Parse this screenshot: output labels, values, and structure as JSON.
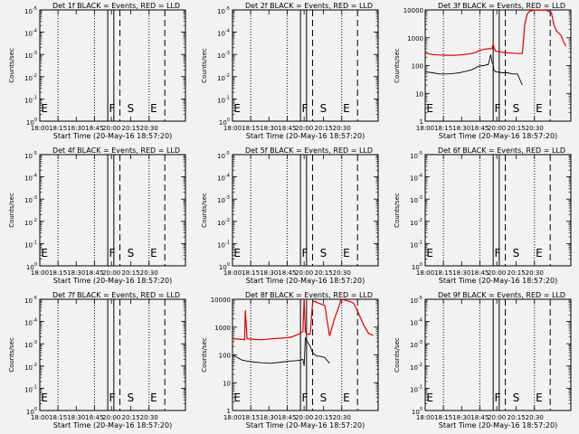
{
  "colors": {
    "background": "#f2f2f2",
    "events": "#000000",
    "lld": "#e00000"
  },
  "chart_data": [
    {
      "type": "line",
      "title": "Det 1f BLACK = Events, RED = LLD",
      "xlabel": "Start Time (20-May-16 18:57:20)",
      "ylabel": "Counts/sec",
      "x_ticks": [
        "18:00",
        "18:15",
        "18:30",
        "18:45",
        "20:00",
        "20:15",
        "20:30"
      ],
      "y_ticks": [
        "10^-5",
        "10^-4",
        "10^-3",
        "10^-2",
        "10^-1",
        "10^0"
      ],
      "y_scale": "log",
      "y_range": [
        "1e-5",
        "1e0"
      ],
      "markers": [
        "E",
        "F",
        "S",
        "E"
      ],
      "series": []
    },
    {
      "type": "line",
      "title": "Det 2f BLACK = Events, RED = LLD",
      "xlabel": "Start Time (20-May-16 18:57:20)",
      "ylabel": "Counts/sec",
      "x_ticks": [
        "18:00",
        "18:15",
        "18:30",
        "18:45",
        "20:00",
        "20:15",
        "20:30"
      ],
      "y_ticks": [
        "10^-5",
        "10^-4",
        "10^-3",
        "10^-2",
        "10^-1",
        "10^0"
      ],
      "y_scale": "log",
      "y_range": [
        "1e-5",
        "1e0"
      ],
      "markers": [
        "E",
        "F",
        "S",
        "E"
      ],
      "series": []
    },
    {
      "type": "line",
      "title": "Det 3f BLACK = Events, RED = LLD",
      "xlabel": "Start Time (20-May-16 18:57:20)",
      "ylabel": "Counts/sec",
      "x_ticks": [
        "18:00",
        "18:15",
        "18:30",
        "18:45",
        "20:00",
        "20:15",
        "20:30"
      ],
      "y_ticks": [
        "10000",
        "1000",
        "100",
        "10",
        "1"
      ],
      "y_scale": "log",
      "y_range": [
        "1",
        "10000"
      ],
      "markers": [
        "E",
        "F",
        "S",
        "E"
      ],
      "series": [
        {
          "color": "#e00000",
          "x": [
            0,
            3,
            6,
            9,
            12,
            14,
            16,
            19,
            21,
            22,
            24,
            26,
            27.5,
            28,
            28.3,
            29,
            32,
            34,
            36,
            38,
            40,
            40.3,
            41,
            42,
            43,
            44,
            45,
            46,
            47,
            48,
            49,
            50,
            52,
            53,
            54,
            56,
            57,
            58
          ],
          "y": [
            280,
            250,
            240,
            235,
            235,
            240,
            250,
            270,
            300,
            340,
            380,
            400,
            410,
            600,
            450,
            330,
            300,
            285,
            280,
            270,
            270,
            500,
            3000,
            7000,
            9000,
            9500,
            10000,
            9800,
            9800,
            9900,
            9800,
            9800,
            8000,
            3000,
            1800,
            1200,
            700,
            500
          ]
        },
        {
          "color": "#000000",
          "x": [
            0,
            3,
            6,
            9,
            12,
            14,
            16,
            19,
            21,
            22,
            24,
            26,
            27,
            27.5,
            28,
            28.3,
            29,
            32,
            34,
            36,
            38,
            40
          ],
          "y": [
            60,
            55,
            50,
            50,
            52,
            55,
            60,
            70,
            85,
            95,
            100,
            110,
            250,
            130,
            110,
            70,
            60,
            55,
            55,
            50,
            50,
            20
          ]
        }
      ]
    },
    {
      "type": "line",
      "title": "Det 4f BLACK = Events, RED = LLD",
      "xlabel": "Start Time (20-May-16 18:57:20)",
      "ylabel": "Counts/sec",
      "x_ticks": [
        "18:00",
        "18:15",
        "18:30",
        "18:45",
        "20:00",
        "20:15",
        "20:30"
      ],
      "y_ticks": [
        "10^-5",
        "10^-4",
        "10^-3",
        "10^-2",
        "10^-1",
        "10^0"
      ],
      "y_scale": "log",
      "y_range": [
        "1e-5",
        "1e0"
      ],
      "markers": [
        "E",
        "F",
        "S",
        "E"
      ],
      "series": []
    },
    {
      "type": "line",
      "title": "Det 5f BLACK = Events, RED = LLD",
      "xlabel": "Start Time (20-May-16 18:57:20)",
      "ylabel": "Counts/sec",
      "x_ticks": [
        "18:00",
        "18:15",
        "18:30",
        "18:45",
        "20:00",
        "20:15",
        "20:30"
      ],
      "y_ticks": [
        "10^-5",
        "10^-4",
        "10^-3",
        "10^-2",
        "10^-1",
        "10^0"
      ],
      "y_scale": "log",
      "y_range": [
        "1e-5",
        "1e0"
      ],
      "markers": [
        "E",
        "F",
        "S",
        "E"
      ],
      "series": []
    },
    {
      "type": "line",
      "title": "Det 6f BLACK = Events, RED = LLD",
      "xlabel": "Start Time (20-May-16 18:57:20)",
      "ylabel": "Counts/sec",
      "x_ticks": [
        "18:00",
        "18:15",
        "18:30",
        "18:45",
        "20:00",
        "20:15",
        "20:30"
      ],
      "y_ticks": [
        "10^-5",
        "10^-4",
        "10^-3",
        "10^-2",
        "10^-1",
        "10^0"
      ],
      "y_scale": "log",
      "y_range": [
        "1e-5",
        "1e0"
      ],
      "markers": [
        "E",
        "F",
        "S",
        "E"
      ],
      "series": []
    },
    {
      "type": "line",
      "title": "Det 7f BLACK = Events, RED = LLD",
      "xlabel": "Start Time (20-May-16 18:57:20)",
      "ylabel": "Counts/sec",
      "x_ticks": [
        "18:00",
        "18:15",
        "18:30",
        "18:45",
        "20:00",
        "20:15",
        "20:30"
      ],
      "y_ticks": [
        "10^-5",
        "10^-4",
        "10^-3",
        "10^-2",
        "10^-1",
        "10^0"
      ],
      "y_scale": "log",
      "y_range": [
        "1e-5",
        "1e0"
      ],
      "markers": [
        "E",
        "F",
        "S",
        "E"
      ],
      "series": []
    },
    {
      "type": "line",
      "title": "Det 8f BLACK = Events, RED = LLD",
      "xlabel": "Start Time (20-May-16 18:57:20)",
      "ylabel": "Counts/sec",
      "x_ticks": [
        "18:00",
        "18:15",
        "18:30",
        "18:45",
        "20:00",
        "20:15",
        "20:30"
      ],
      "y_ticks": [
        "10000",
        "1000",
        "100",
        "10",
        "1"
      ],
      "y_scale": "log",
      "y_range": [
        "1",
        "10000"
      ],
      "markers": [
        "E",
        "F",
        "S",
        "E"
      ],
      "series": [
        {
          "color": "#e00000",
          "x": [
            0,
            2,
            4,
            5,
            5.3,
            6,
            9,
            12,
            16,
            20,
            24,
            26,
            28,
            29,
            29.5,
            30,
            31,
            32,
            33,
            34,
            35,
            36,
            38,
            40,
            42,
            44,
            44.5,
            45,
            46,
            47,
            48,
            49,
            50,
            52,
            54,
            56,
            58
          ],
          "y": [
            380,
            370,
            360,
            350,
            4000,
            380,
            360,
            350,
            380,
            400,
            430,
            500,
            600,
            700,
            10000,
            650,
            550,
            560,
            8000,
            8500,
            7500,
            7000,
            6000,
            480,
            2000,
            6000,
            9000,
            9800,
            9500,
            9000,
            8500,
            8000,
            7000,
            3000,
            1200,
            600,
            500
          ]
        },
        {
          "color": "#000000",
          "x": [
            0,
            2,
            4,
            6,
            9,
            12,
            16,
            20,
            24,
            26,
            28,
            29,
            29.5,
            30,
            31,
            32,
            33,
            34,
            35,
            36,
            38,
            40
          ],
          "y": [
            100,
            80,
            65,
            60,
            55,
            52,
            50,
            55,
            60,
            62,
            65,
            70,
            40,
            400,
            280,
            200,
            120,
            100,
            90,
            90,
            80,
            50
          ]
        }
      ]
    },
    {
      "type": "line",
      "title": "Det 9f BLACK = Events, RED = LLD",
      "xlabel": "Start Time (20-May-16 18:57:20)",
      "ylabel": "Counts/sec",
      "x_ticks": [
        "18:00",
        "18:15",
        "18:30",
        "18:45",
        "20:00",
        "20:15",
        "20:30"
      ],
      "y_ticks": [
        "10^-5",
        "10^-4",
        "10^-3",
        "10^-2",
        "10^-1",
        "10^0"
      ],
      "y_scale": "log",
      "y_range": [
        "1e-5",
        "1e0"
      ],
      "markers": [
        "E",
        "F",
        "S",
        "E"
      ],
      "series": []
    }
  ]
}
